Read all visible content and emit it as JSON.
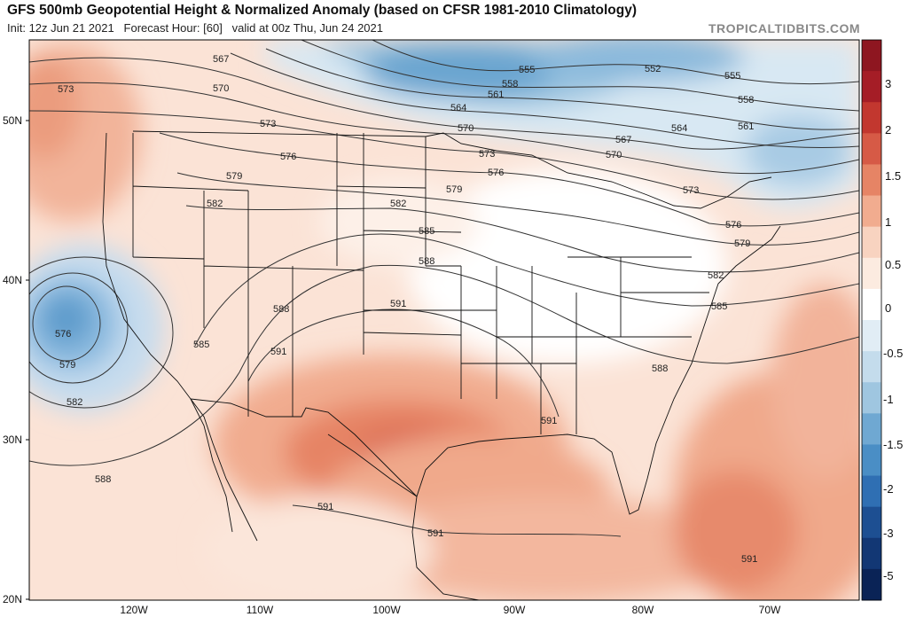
{
  "header": {
    "title": "GFS 500mb Geopotential Height & Normalized Anomaly (based on CFSR 1981-2010 Climatology)",
    "init": "Init: 12z Jun 21 2021",
    "forecast_hour": "Forecast Hour: [60]",
    "valid": "valid at 00z Thu, Jun 24 2021",
    "credit": "TROPICALTIDBITS.COM"
  },
  "axes": {
    "lat_labels": [
      "50N",
      "40N",
      "30N",
      "20N"
    ],
    "lon_labels": [
      "120W",
      "110W",
      "100W",
      "90W",
      "80W",
      "70W"
    ]
  },
  "colorbar": {
    "labels": [
      "3",
      "2",
      "1.5",
      "1",
      "0.5",
      "0",
      "-0.5",
      "-1",
      "-1.5",
      "-2",
      "-3",
      "-5"
    ],
    "colors": [
      "#8e1620",
      "#a51d26",
      "#c2372f",
      "#d65a46",
      "#e68465",
      "#f1ac8f",
      "#f8d3c0",
      "#fcebe0",
      "#ffffff",
      "#e1edf5",
      "#c4dcec",
      "#9fc6e0",
      "#6fa8d2",
      "#4a8ec5",
      "#2f6fb3",
      "#1d4f92",
      "#123774",
      "#0a2356"
    ]
  },
  "contours": {
    "labels": [
      "567",
      "570",
      "573",
      "576",
      "579",
      "582",
      "585",
      "588",
      "591",
      "555",
      "552",
      "558",
      "561",
      "564"
    ],
    "line_color": "#333333"
  },
  "map_data": {
    "type": "meteorological-map",
    "variable": "500mb geopotential height (dam) and normalized anomaly",
    "features": [
      {
        "name": "upper low",
        "location": "off California coast",
        "height_contours": [
          576,
          579,
          582
        ]
      },
      {
        "name": "upper trough",
        "location": "southern Canada / Hudson Bay",
        "height_contours": [
          552,
          555
        ]
      },
      {
        "name": "upper ridge",
        "location": "Texas / southern Plains",
        "height_contours": [
          591
        ]
      }
    ]
  }
}
